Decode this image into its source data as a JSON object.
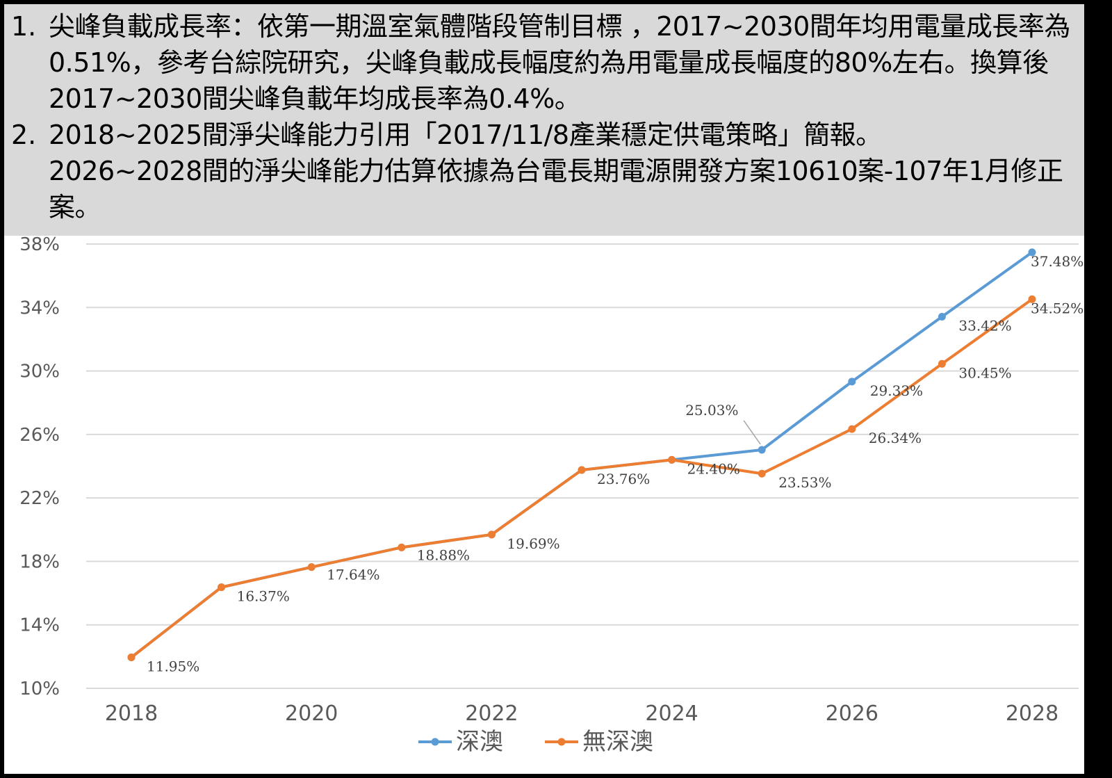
{
  "notes": [
    {
      "num": "1.",
      "text": "尖峰負載成長率：依第一期溫室氣體階段管制目標 ，2017~2030間年均用電量成長率為0.51%，參考台綜院研究，尖峰負載成長幅度約為用電量成長幅度的80%左右。換算後2017~2030間尖峰負載年均成長率為0.4%。"
    },
    {
      "num": "2.",
      "text": "2018~2025間淨尖峰能力引用「2017/11/8產業穩定供電策略」簡報。\n2026~2028間的淨尖峰能力估算依據為台電長期電源開發方案10610案-107年1月修正案。"
    }
  ],
  "chart_data": {
    "type": "line",
    "x": [
      2018,
      2019,
      2020,
      2021,
      2022,
      2023,
      2024,
      2025,
      2026,
      2027,
      2028
    ],
    "xticks": [
      "2018",
      "2020",
      "2022",
      "2024",
      "2026",
      "2028"
    ],
    "xlim": [
      2018,
      2028
    ],
    "ylim": [
      10,
      38
    ],
    "yticks": [
      "10%",
      "14%",
      "18%",
      "22%",
      "26%",
      "30%",
      "34%",
      "38%"
    ],
    "grid": true,
    "legend_position": "bottom",
    "series": [
      {
        "name": "深澳",
        "color": "#5b9bd5",
        "values": [
          11.95,
          16.37,
          17.64,
          18.88,
          19.69,
          23.76,
          24.4,
          25.03,
          29.33,
          33.42,
          37.48
        ],
        "labels": [
          null,
          null,
          null,
          null,
          null,
          null,
          null,
          "25.03%",
          "29.33%",
          "33.42%",
          "37.48%"
        ]
      },
      {
        "name": "無深澳",
        "color": "#ed7d31",
        "values": [
          11.95,
          16.37,
          17.64,
          18.88,
          19.69,
          23.76,
          24.4,
          23.53,
          26.34,
          30.45,
          34.52
        ],
        "labels": [
          "11.95%",
          "16.37%",
          "17.64%",
          "18.88%",
          "19.69%",
          "23.76%",
          "24.40%",
          "23.53%",
          "26.34%",
          "30.45%",
          "34.52%"
        ]
      }
    ]
  }
}
